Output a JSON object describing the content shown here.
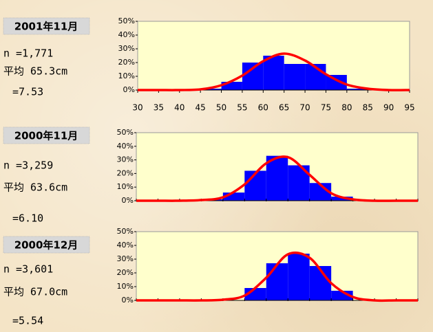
{
  "chart_data": [
    {
      "type": "histogram",
      "title": "2001年11月",
      "stats": [
        "n =1,771",
        "平均 65.3cm",
        "=7.53"
      ],
      "bins": [
        30,
        35,
        40,
        45,
        50,
        55,
        60,
        65,
        70,
        75,
        80,
        85,
        90,
        95
      ],
      "counts": [
        0,
        0,
        0,
        1,
        6,
        20,
        25,
        19,
        19,
        11,
        1,
        0,
        0
      ],
      "color": "#0000ff",
      "curve": {
        "x": [
          30,
          35,
          40,
          45,
          50,
          55,
          60,
          65,
          70,
          75,
          80,
          85,
          90,
          95
        ],
        "values": [
          0,
          0,
          0,
          0.5,
          3.5,
          10.5,
          21,
          26.5,
          21.5,
          11.5,
          4,
          1,
          0,
          0
        ],
        "color": "#ff0000"
      },
      "xlim": [
        30,
        95
      ],
      "xticks": [
        30,
        35,
        40,
        45,
        50,
        55,
        60,
        65,
        70,
        75,
        80,
        85,
        90,
        95
      ],
      "ylim": [
        0,
        50
      ],
      "yticks": [
        {
          "value": 0,
          "label": "0%"
        },
        {
          "value": 10,
          "label": "10%"
        },
        {
          "value": 20,
          "label": "20%"
        },
        {
          "value": 30,
          "label": "30%"
        },
        {
          "value": 40,
          "label": "40%"
        },
        {
          "value": 50,
          "label": "50%"
        }
      ]
    },
    {
      "type": "histogram",
      "title": "2000年11月",
      "stats": [
        "n =3,259",
        "平均 63.6cm",
        "=6.10"
      ],
      "bins": [
        30,
        35,
        40,
        45,
        50,
        55,
        60,
        65,
        70,
        75,
        80,
        85,
        90,
        95
      ],
      "counts": [
        0,
        0,
        0,
        1,
        6,
        22,
        33,
        26,
        13,
        3,
        0,
        0,
        0
      ],
      "color": "#0000ff",
      "curve": {
        "x": [
          30,
          35,
          40,
          45,
          50,
          55,
          60,
          65,
          70,
          75,
          80,
          85,
          90,
          95
        ],
        "values": [
          0,
          0,
          0,
          0.5,
          2.5,
          12,
          27.5,
          32,
          19,
          5.5,
          1,
          0,
          0,
          0
        ],
        "color": "#ff0000"
      },
      "xlim": [
        30,
        95
      ],
      "ylim": [
        0,
        50
      ],
      "yticks": [
        {
          "value": 0,
          "label": "0%"
        },
        {
          "value": 10,
          "label": "10%"
        },
        {
          "value": 20,
          "label": "20%"
        },
        {
          "value": 30,
          "label": "30%"
        },
        {
          "value": 40,
          "label": "40%"
        },
        {
          "value": 50,
          "label": "50%"
        }
      ]
    },
    {
      "type": "histogram",
      "title": "2000年12月",
      "stats": [
        "n =3,601",
        "平均 67.0cm",
        "=5.54"
      ],
      "bins": [
        30,
        35,
        40,
        45,
        50,
        55,
        60,
        65,
        70,
        75,
        80,
        85,
        90,
        95
      ],
      "counts": [
        0,
        0,
        0,
        0.5,
        0,
        9,
        27,
        34,
        25,
        7,
        0,
        0,
        0
      ],
      "color": "#0000ff",
      "curve": {
        "x": [
          30,
          35,
          40,
          45,
          50,
          55,
          60,
          65,
          70,
          75,
          80,
          85,
          90,
          95
        ],
        "values": [
          0,
          0,
          0,
          0,
          0.5,
          3.5,
          16.5,
          33.5,
          31,
          12.5,
          2.5,
          0,
          0,
          0
        ],
        "color": "#ff0000"
      },
      "xlim": [
        30,
        95
      ],
      "ylim": [
        0,
        50
      ],
      "yticks": [
        {
          "value": 0,
          "label": "0%"
        },
        {
          "value": 10,
          "label": "10%"
        },
        {
          "value": 20,
          "label": "20%"
        },
        {
          "value": 30,
          "label": "30%"
        },
        {
          "value": 40,
          "label": "40%"
        },
        {
          "value": 50,
          "label": "50%"
        }
      ]
    }
  ]
}
